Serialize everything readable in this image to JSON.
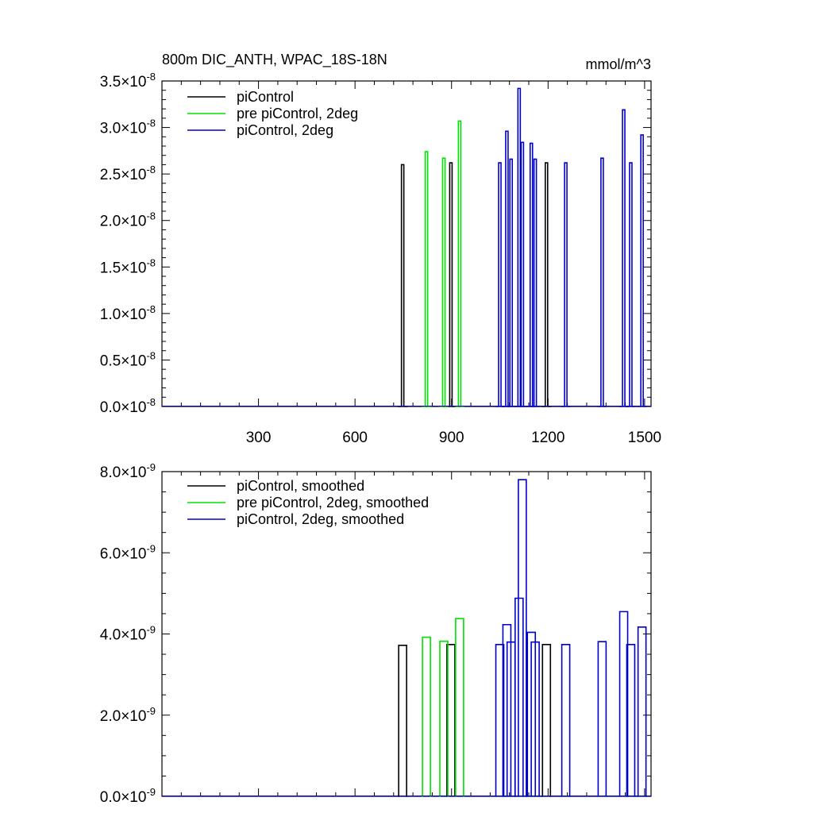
{
  "colors": {
    "black": "#000000",
    "green": "#00e000",
    "blue": "#0000cc"
  },
  "chart_data": [
    {
      "type": "line",
      "title": "800m DIC_ANTH, WPAC_18S-18N",
      "units": "mmol/m^3",
      "xlim": [
        0,
        1520
      ],
      "ylim": [
        0.0,
        3.5e-08
      ],
      "x_ticks": [
        {
          "v": 300,
          "label": "300"
        },
        {
          "v": 600,
          "label": "600"
        },
        {
          "v": 900,
          "label": "900"
        },
        {
          "v": 1200,
          "label": "1200"
        },
        {
          "v": 1500,
          "label": "1500"
        }
      ],
      "y_ticks": [
        {
          "v": 0.0,
          "mant": "0.0",
          "exp": "-8"
        },
        {
          "v": 5e-09,
          "mant": "0.5",
          "exp": "-8"
        },
        {
          "v": 1e-08,
          "mant": "1.0",
          "exp": "-8"
        },
        {
          "v": 1.5e-08,
          "mant": "1.5",
          "exp": "-8"
        },
        {
          "v": 2e-08,
          "mant": "2.0",
          "exp": "-8"
        },
        {
          "v": 2.5e-08,
          "mant": "2.5",
          "exp": "-8"
        },
        {
          "v": 3e-08,
          "mant": "3.0",
          "exp": "-8"
        },
        {
          "v": 3.5e-08,
          "mant": "3.5",
          "exp": "-8"
        }
      ],
      "series": [
        {
          "name": "piControl",
          "color": "#000000",
          "spike_width": 3,
          "spikes": [
            {
              "x": 748,
              "y": 2.6e-08
            },
            {
              "x": 898,
              "y": 2.62e-08
            },
            {
              "x": 1195,
              "y": 2.62e-08
            }
          ]
        },
        {
          "name": "pre piControl, 2deg",
          "color": "#00e000",
          "spike_width": 3,
          "spikes": [
            {
              "x": 822,
              "y": 2.74e-08
            },
            {
              "x": 876,
              "y": 2.67e-08
            },
            {
              "x": 925,
              "y": 3.07e-08
            }
          ]
        },
        {
          "name": "piControl, 2deg",
          "color": "#0000cc",
          "spike_width": 3,
          "spikes": [
            {
              "x": 1050,
              "y": 2.62e-08
            },
            {
              "x": 1072,
              "y": 2.96e-08
            },
            {
              "x": 1085,
              "y": 2.66e-08
            },
            {
              "x": 1110,
              "y": 3.42e-08
            },
            {
              "x": 1120,
              "y": 2.84e-08
            },
            {
              "x": 1148,
              "y": 2.83e-08
            },
            {
              "x": 1160,
              "y": 2.66e-08
            },
            {
              "x": 1255,
              "y": 2.62e-08
            },
            {
              "x": 1368,
              "y": 2.67e-08
            },
            {
              "x": 1435,
              "y": 3.19e-08
            },
            {
              "x": 1457,
              "y": 2.62e-08
            },
            {
              "x": 1492,
              "y": 2.92e-08
            }
          ]
        }
      ]
    },
    {
      "type": "line",
      "xlim": [
        0,
        1520
      ],
      "ylim": [
        0.0,
        8e-09
      ],
      "x_ticks": [
        {
          "v": 300
        },
        {
          "v": 600
        },
        {
          "v": 900
        },
        {
          "v": 1200
        },
        {
          "v": 1500
        }
      ],
      "y_ticks": [
        {
          "v": 0.0,
          "mant": "0.0",
          "exp": "-9"
        },
        {
          "v": 2e-09,
          "mant": "2.0",
          "exp": "-9"
        },
        {
          "v": 4e-09,
          "mant": "4.0",
          "exp": "-9"
        },
        {
          "v": 6e-09,
          "mant": "6.0",
          "exp": "-9"
        },
        {
          "v": 8e-09,
          "mant": "8.0",
          "exp": "-9"
        }
      ],
      "series": [
        {
          "name": "piControl, smoothed",
          "color": "#000000",
          "spike_width": 10,
          "spikes": [
            {
              "x": 748,
              "y": 3.72e-09
            },
            {
              "x": 898,
              "y": 3.74e-09
            },
            {
              "x": 1195,
              "y": 3.74e-09
            }
          ]
        },
        {
          "name": "pre piControl, 2deg, smoothed",
          "color": "#00e000",
          "spike_width": 10,
          "spikes": [
            {
              "x": 822,
              "y": 3.92e-09
            },
            {
              "x": 876,
              "y": 3.82e-09
            },
            {
              "x": 925,
              "y": 4.38e-09
            }
          ]
        },
        {
          "name": "piControl, 2deg, smoothed",
          "color": "#0000cc",
          "spike_width": 10,
          "spikes": [
            {
              "x": 1050,
              "y": 3.74e-09
            },
            {
              "x": 1072,
              "y": 4.23e-09
            },
            {
              "x": 1085,
              "y": 3.8e-09
            },
            {
              "x": 1110,
              "y": 4.88e-09
            },
            {
              "x": 1120,
              "y": 7.8e-09
            },
            {
              "x": 1148,
              "y": 4.04e-09
            },
            {
              "x": 1160,
              "y": 3.8e-09
            },
            {
              "x": 1255,
              "y": 3.74e-09
            },
            {
              "x": 1368,
              "y": 3.81e-09
            },
            {
              "x": 1435,
              "y": 4.55e-09
            },
            {
              "x": 1457,
              "y": 3.74e-09
            },
            {
              "x": 1492,
              "y": 4.17e-09
            }
          ]
        }
      ]
    }
  ]
}
